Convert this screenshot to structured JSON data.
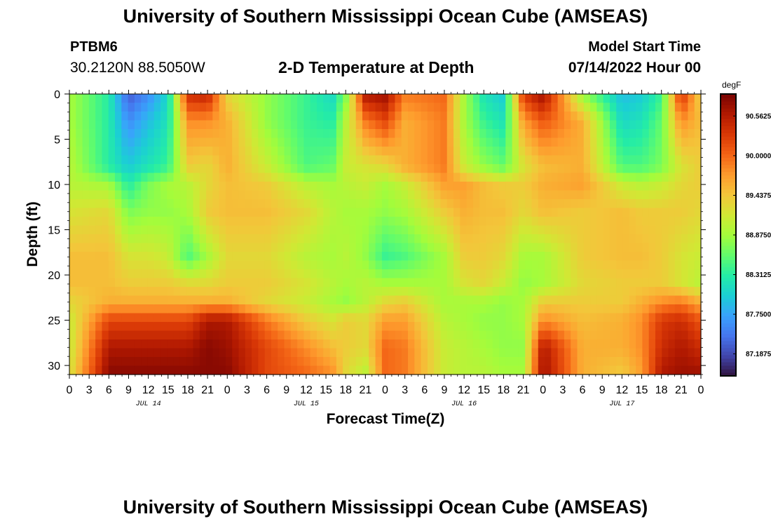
{
  "header": {
    "title": "University of Southern Mississippi Ocean Cube (AMSEAS)",
    "station": "PTBM6",
    "coords": "30.2120N  88.5050W",
    "subtitle": "2-D Temperature at Depth",
    "start_label": "Model Start Time",
    "start_value": "07/14/2022 Hour 00"
  },
  "footer": {
    "title": "University of Southern Mississippi Ocean Cube (AMSEAS)"
  },
  "chart_data": {
    "type": "heatmap",
    "xlabel": "Forecast Time(Z)",
    "ylabel": "Depth (ft)",
    "x_range_hours": [
      0,
      96
    ],
    "y_range": [
      0,
      31
    ],
    "y_inverted": true,
    "x_tick_step_hours": 3,
    "x_tick_labels": [
      "0",
      "3",
      "6",
      "9",
      "12",
      "15",
      "18",
      "21",
      "0",
      "3",
      "6",
      "9",
      "12",
      "15",
      "18",
      "21",
      "0",
      "3",
      "6",
      "9",
      "12",
      "15",
      "18",
      "21",
      "0",
      "3",
      "6",
      "9",
      "12",
      "15",
      "18",
      "21",
      "0"
    ],
    "y_ticks": [
      0,
      5,
      10,
      15,
      20,
      25,
      30
    ],
    "y_tick_labels": [
      "0",
      "5",
      "10",
      "15",
      "20",
      "25",
      "30"
    ],
    "day_labels": [
      {
        "label": "JUL 14",
        "hour": 12
      },
      {
        "label": "JUL 15",
        "hour": 36
      },
      {
        "label": "JUL 16",
        "hour": 60
      },
      {
        "label": "JUL 17",
        "hour": 84
      }
    ],
    "colorbar": {
      "unit": "degF",
      "min": 86.875,
      "max": 90.875,
      "tick_values": [
        90.5625,
        90.0,
        89.4375,
        88.875,
        88.3125,
        87.75,
        87.1875
      ],
      "tick_labels": [
        "90.5625",
        "90.0000",
        "89.4375",
        "88.8750",
        "88.3125",
        "87.7500",
        "87.1875"
      ],
      "colormap": [
        "#30123b",
        "#4145ab",
        "#4675ed",
        "#39a2fc",
        "#1bcfd4",
        "#24eca6",
        "#61fc6c",
        "#a4fc3b",
        "#d1e834",
        "#f3c63a",
        "#fe9b2d",
        "#f36315",
        "#d93806",
        "#b11901",
        "#7a0402"
      ]
    },
    "hours": [
      0,
      6,
      9,
      12,
      15,
      18,
      21,
      24,
      30,
      36,
      40,
      42,
      45,
      48,
      51,
      57,
      60,
      63,
      66,
      69,
      72,
      78,
      84,
      87,
      90,
      93,
      96
    ],
    "depths": [
      0,
      3,
      8,
      10,
      13,
      18,
      21,
      23,
      25,
      28,
      31
    ],
    "values": [
      [
        88.9,
        88.9,
        89.0,
        89.0,
        89.2,
        89.5,
        89.5,
        89.3,
        89.1,
        89.1,
        89.2
      ],
      [
        88.3,
        88.3,
        88.3,
        88.9,
        89.3,
        89.5,
        89.5,
        89.6,
        90.2,
        90.6,
        90.8
      ],
      [
        87.3,
        87.6,
        88.0,
        88.3,
        88.7,
        89.2,
        89.4,
        89.6,
        90.2,
        90.6,
        90.8
      ],
      [
        87.6,
        87.9,
        88.2,
        88.7,
        88.8,
        89.2,
        89.4,
        89.6,
        90.2,
        90.6,
        90.8
      ],
      [
        88.1,
        88.2,
        88.4,
        88.9,
        88.8,
        89.1,
        89.4,
        89.6,
        90.2,
        90.6,
        90.8
      ],
      [
        90.4,
        89.8,
        89.4,
        89.0,
        88.9,
        88.5,
        89.3,
        89.6,
        90.2,
        90.6,
        90.8
      ],
      [
        90.5,
        89.8,
        89.3,
        89.3,
        89.4,
        88.9,
        89.3,
        89.6,
        90.6,
        90.8,
        90.8
      ],
      [
        89.3,
        89.6,
        89.6,
        89.5,
        89.5,
        89.3,
        89.4,
        89.6,
        90.6,
        90.7,
        90.8
      ],
      [
        88.8,
        88.8,
        89.1,
        89.4,
        89.5,
        89.3,
        89.4,
        89.3,
        89.9,
        90.2,
        90.2
      ],
      [
        88.4,
        88.4,
        88.5,
        89.0,
        89.3,
        89.0,
        89.2,
        89.1,
        89.4,
        89.8,
        90.0
      ],
      [
        88.1,
        88.3,
        88.6,
        88.9,
        89.0,
        88.9,
        89.0,
        88.9,
        89.2,
        89.5,
        89.8
      ],
      [
        88.7,
        89.0,
        89.1,
        89.0,
        88.9,
        89.0,
        88.9,
        88.8,
        89.4,
        89.4,
        89.3
      ],
      [
        90.6,
        89.9,
        89.2,
        89.1,
        88.9,
        88.8,
        89.0,
        89.0,
        89.3,
        89.3,
        89.0
      ],
      [
        90.7,
        90.2,
        89.3,
        88.9,
        88.8,
        88.4,
        88.9,
        89.3,
        89.7,
        90.0,
        90.0
      ],
      [
        89.9,
        89.6,
        89.6,
        89.1,
        88.9,
        88.5,
        88.9,
        89.4,
        89.7,
        89.9,
        89.9
      ],
      [
        90.0,
        89.9,
        89.9,
        89.7,
        89.4,
        88.9,
        88.9,
        88.9,
        89.0,
        89.1,
        89.1
      ],
      [
        88.9,
        88.9,
        89.1,
        89.7,
        89.6,
        89.4,
        89.2,
        88.9,
        88.9,
        89.0,
        89.0
      ],
      [
        88.2,
        88.4,
        88.8,
        89.5,
        89.5,
        89.4,
        89.3,
        88.9,
        88.8,
        88.9,
        89.0
      ],
      [
        88.0,
        88.2,
        88.6,
        89.4,
        89.5,
        89.3,
        89.1,
        88.8,
        88.8,
        88.8,
        88.9
      ],
      [
        90.3,
        89.7,
        89.2,
        89.4,
        89.3,
        88.9,
        88.8,
        88.9,
        88.9,
        88.8,
        88.9
      ],
      [
        90.7,
        90.1,
        89.5,
        89.6,
        89.5,
        88.9,
        88.9,
        89.4,
        89.8,
        90.6,
        90.7
      ],
      [
        88.8,
        89.6,
        89.6,
        89.7,
        89.4,
        89.4,
        89.3,
        89.4,
        89.5,
        89.6,
        89.6
      ],
      [
        87.9,
        88.1,
        88.5,
        89.1,
        89.5,
        89.5,
        89.4,
        89.4,
        89.6,
        89.6,
        89.4
      ],
      [
        88.0,
        88.2,
        88.5,
        89.0,
        89.4,
        89.5,
        89.4,
        89.6,
        89.8,
        89.8,
        89.7
      ],
      [
        88.4,
        88.6,
        88.7,
        89.1,
        89.4,
        89.4,
        89.4,
        89.8,
        90.3,
        90.4,
        90.6
      ],
      [
        90.4,
        89.8,
        89.2,
        89.3,
        89.4,
        89.2,
        89.2,
        89.9,
        90.4,
        90.6,
        90.7
      ],
      [
        89.3,
        89.5,
        89.4,
        89.4,
        89.3,
        89.1,
        89.0,
        89.6,
        90.1,
        90.4,
        90.7
      ]
    ]
  }
}
